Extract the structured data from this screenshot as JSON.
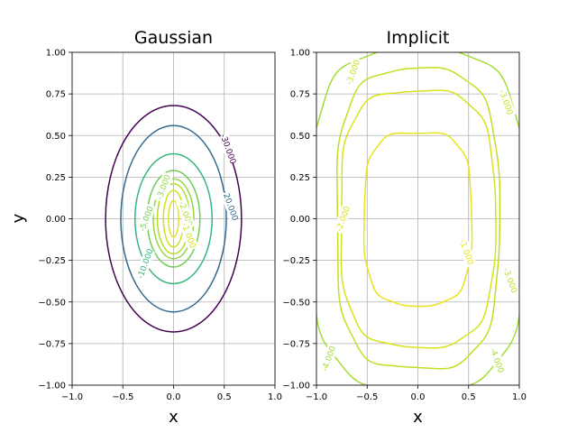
{
  "chart_data": [
    {
      "type": "contour",
      "title": "Gaussian",
      "xlabel": "x",
      "ylabel": "y",
      "xlim": [
        -1.0,
        1.0
      ],
      "ylim": [
        -1.0,
        1.0
      ],
      "grid": true,
      "xticks": [
        "−1.0",
        "−0.5",
        "0.0",
        "0.5",
        "1.0"
      ],
      "yticks": [
        "−1.00",
        "−0.75",
        "−0.50",
        "−0.25",
        "0.00",
        "0.25",
        "0.50",
        "0.75",
        "1.00"
      ],
      "levels": [
        {
          "value": "-30.000",
          "rx": 0.67,
          "ry": 0.68,
          "color": "#440154",
          "label_at": [
            0.54,
            0.42
          ]
        },
        {
          "value": "-20.000",
          "rx": 0.52,
          "ry": 0.56,
          "color": "#31688e",
          "label_at": [
            0.56,
            0.08
          ]
        },
        {
          "value": "-10.000",
          "rx": 0.38,
          "ry": 0.39,
          "color": "#35b779",
          "label_at": [
            -0.28,
            -0.27
          ]
        },
        {
          "value": "-5.000",
          "rx": 0.26,
          "ry": 0.29,
          "color": "#6ece58",
          "label_at": [
            -0.27,
            0.0
          ]
        },
        {
          "value": "-3.000",
          "rx": 0.2,
          "ry": 0.24,
          "color": "#95d840",
          "label_at": [
            -0.1,
            0.19
          ]
        },
        {
          "value": "-2.000",
          "rx": 0.16,
          "ry": 0.21,
          "color": "#b5de2b",
          "label_at": [
            0.12,
            0.03
          ]
        },
        {
          "value": "-1.000",
          "rx": 0.1,
          "ry": 0.17,
          "color": "#d0e11c",
          "label_at": [
            0.15,
            -0.1
          ]
        },
        {
          "value": "-0.500",
          "rx": 0.05,
          "ry": 0.11,
          "color": "#e4e419",
          "label_at": null
        }
      ]
    },
    {
      "type": "contour",
      "title": "Implicit",
      "xlabel": "x",
      "ylabel": "",
      "xlim": [
        -1.0,
        1.0
      ],
      "ylim": [
        -1.0,
        1.0
      ],
      "grid": true,
      "xticks": [
        "−1.0",
        "−0.5",
        "0.0",
        "0.5",
        "1.0"
      ],
      "yticks": [
        "−1.00",
        "−0.75",
        "−0.50",
        "−0.25",
        "0.00",
        "0.25",
        "0.50",
        "0.75",
        "1.00"
      ],
      "levels": [
        {
          "value": "-4.000",
          "color": "#a5db36",
          "rx": 1.05,
          "ry": 1.02,
          "labels": [
            [
              -0.88,
              -0.84
            ],
            [
              0.78,
              -0.85
            ]
          ]
        },
        {
          "value": "-3.000",
          "color": "#c2df23",
          "rx": 0.8,
          "ry": 0.9,
          "labels": [
            [
              -0.64,
              0.88
            ],
            [
              0.87,
              0.7
            ],
            [
              0.91,
              -0.37
            ]
          ]
        },
        {
          "value": "-2.000",
          "color": "#d8e219",
          "rx": 0.76,
          "ry": 0.77,
          "labels": [
            [
              -0.74,
              0.0
            ]
          ]
        },
        {
          "value": "-1.000",
          "color": "#e7e419",
          "rx": 0.53,
          "ry": 0.52,
          "labels": [
            [
              0.48,
              -0.2
            ]
          ]
        }
      ]
    }
  ]
}
